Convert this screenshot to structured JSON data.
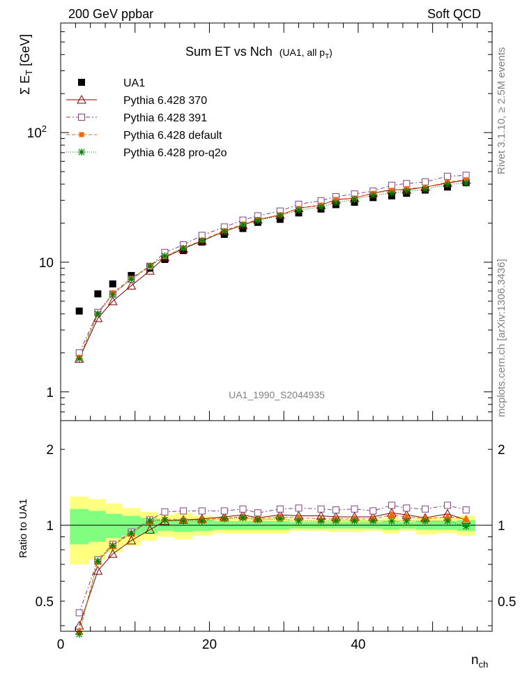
{
  "header": {
    "left": "200 GeV ppbar",
    "right": "Soft QCD"
  },
  "side_text": {
    "rivet": "Rivet 3.1.10, ≥ 2.5M events",
    "mcplots": "mcplots.cern.ch [arXiv:1306.3436]"
  },
  "chart_data": [
    {
      "type": "scatter",
      "panel": "main",
      "title": "Sum ET vs Nch",
      "subtitle": "(UA1, all p",
      "subtitle_sub": "T",
      "subtitle_close": ")",
      "ylabel": "Σ E",
      "ylabel_sub": "T",
      "ylabel_unit": " [GeV]",
      "watermark": "UA1_1990_S2044935",
      "yscale": "log",
      "ylim": [
        0.6,
        700
      ],
      "xlim": [
        0,
        58
      ],
      "yticks": [
        {
          "value": 1,
          "label": "1"
        },
        {
          "value": 10,
          "label": "10"
        },
        {
          "value": 100,
          "label": "10",
          "sup": "2"
        }
      ],
      "legend_position": "top-left",
      "x": [
        2.5,
        5,
        7,
        9.5,
        12,
        14,
        16.5,
        19,
        22,
        24.5,
        26.5,
        29.5,
        32,
        35,
        37,
        39.5,
        42,
        44.5,
        46.5,
        49,
        52,
        54.5
      ],
      "series": [
        {
          "name": "UA1",
          "color": "#000000",
          "marker": "filled-square",
          "values": [
            4.2,
            5.7,
            6.8,
            7.9,
            9.0,
            10.5,
            12.3,
            14.3,
            16.4,
            18.2,
            20.3,
            21.4,
            24.0,
            25.7,
            27.8,
            29.0,
            31.5,
            32.5,
            34.0,
            36.0,
            38.0,
            41.0
          ],
          "ratio_band_green": [
            0.16,
            0.14,
            0.11,
            0.09,
            0.07,
            0.05,
            0.06,
            0.05,
            0.04,
            0.04,
            0.04,
            0.04,
            0.03,
            0.03,
            0.03,
            0.03,
            0.03,
            0.04,
            0.03,
            0.04,
            0.04,
            0.05
          ],
          "ratio_band_yellow": [
            0.3,
            0.27,
            0.22,
            0.17,
            0.13,
            0.1,
            0.12,
            0.09,
            0.07,
            0.07,
            0.07,
            0.07,
            0.05,
            0.05,
            0.06,
            0.06,
            0.05,
            0.07,
            0.05,
            0.08,
            0.07,
            0.09
          ]
        },
        {
          "name": "Pythia 6.428 370",
          "color": "#800000",
          "marker": "open-triangle",
          "dash": "",
          "values": [
            1.8,
            3.7,
            5.0,
            6.6,
            8.6,
            10.9,
            12.7,
            14.6,
            17.3,
            19.3,
            21.3,
            23.1,
            26.1,
            27.6,
            30.3,
            31.2,
            34.1,
            36.3,
            36.2,
            38.0,
            40.8,
            43.0
          ],
          "ratio": [
            0.4,
            0.66,
            0.77,
            0.87,
            0.96,
            1.04,
            1.05,
            1.06,
            1.08,
            1.1,
            1.07,
            1.1,
            1.09,
            1.09,
            1.08,
            1.08,
            1.08,
            1.12,
            1.1,
            1.07,
            1.11,
            1.05
          ]
        },
        {
          "name": "Pythia 6.428 391",
          "color": "#804080",
          "marker": "open-square",
          "dash": "6,3,2,3",
          "values": [
            2.0,
            4.1,
            5.7,
            7.4,
            9.3,
            11.9,
            13.6,
            16.1,
            18.7,
            21.1,
            22.8,
            24.8,
            28.0,
            29.8,
            32.0,
            33.6,
            35.4,
            39.2,
            40.4,
            41.7,
            46.0,
            46.8
          ],
          "ratio": [
            0.45,
            0.73,
            0.84,
            0.94,
            1.05,
            1.13,
            1.14,
            1.14,
            1.14,
            1.16,
            1.12,
            1.16,
            1.17,
            1.16,
            1.15,
            1.16,
            1.14,
            1.2,
            1.17,
            1.16,
            1.2,
            1.15
          ]
        },
        {
          "name": "Pythia 6.428 default",
          "color": "#ff6600",
          "marker": "filled-square",
          "dash": "5,3",
          "values": [
            1.85,
            4.0,
            5.8,
            7.5,
            9.4,
            11.0,
            12.9,
            14.8,
            17.5,
            19.7,
            21.4,
            23.2,
            26.0,
            27.6,
            30.5,
            31.3,
            34.0,
            35.9,
            36.9,
            37.9,
            41.5,
            43.3
          ],
          "ratio": [
            0.38,
            0.72,
            0.83,
            0.93,
            1.04,
            1.06,
            1.05,
            1.05,
            1.07,
            1.08,
            1.06,
            1.08,
            1.07,
            1.06,
            1.06,
            1.06,
            1.06,
            1.1,
            1.08,
            1.06,
            1.08,
            1.06
          ]
        },
        {
          "name": "Pythia 6.428 pro-q2o",
          "color": "#008000",
          "marker": "star",
          "dash": "1,2",
          "values": [
            1.8,
            4.0,
            5.6,
            7.4,
            9.3,
            11.2,
            12.8,
            14.7,
            17.2,
            19.4,
            20.9,
            22.9,
            25.2,
            26.7,
            28.8,
            30.5,
            32.9,
            34.1,
            35.4,
            36.5,
            39.8,
            40.7
          ],
          "ratio": [
            0.37,
            0.72,
            0.83,
            0.93,
            1.04,
            1.05,
            1.04,
            1.04,
            1.06,
            1.07,
            1.05,
            1.06,
            1.04,
            1.04,
            1.04,
            1.04,
            1.04,
            1.04,
            1.04,
            1.04,
            1.04,
            0.99
          ]
        }
      ]
    },
    {
      "type": "scatter",
      "panel": "ratio",
      "ylabel": "Ratio to UA1",
      "xlabel": "n",
      "xlabel_sub": "ch",
      "yscale": "log",
      "ylim": [
        0.38,
        2.6
      ],
      "xlim": [
        0,
        58
      ],
      "xticks": [
        {
          "value": 0,
          "label": "0"
        },
        {
          "value": 20,
          "label": "20"
        },
        {
          "value": 40,
          "label": "40"
        }
      ],
      "yticks": [
        {
          "value": 0.5,
          "label": "0.5"
        },
        {
          "value": 1,
          "label": "1"
        },
        {
          "value": 2,
          "label": "2"
        }
      ]
    }
  ]
}
